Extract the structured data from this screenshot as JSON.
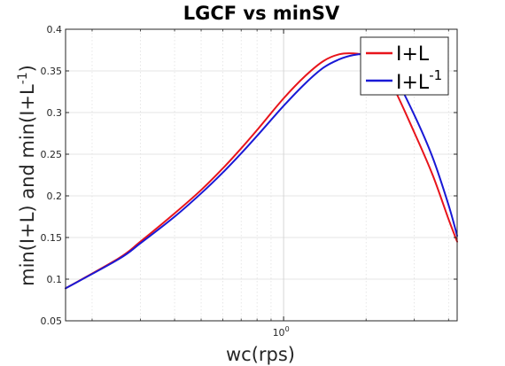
{
  "chart_data": {
    "type": "line",
    "title": "LGCF vs minSV",
    "xlabel": "wc(rps)",
    "ylabel_main": "min(I+L) and min(I+L",
    "ylabel_sup": "-1",
    "ylabel_end": ")",
    "xscale": "log",
    "xlim": [
      0.16,
      4.3
    ],
    "ylim": [
      0.05,
      0.4
    ],
    "grid": true,
    "legend_position": "top-right",
    "yticks": [
      0.05,
      0.1,
      0.15,
      0.2,
      0.25,
      0.3,
      0.35,
      0.4
    ],
    "ytick_labels": [
      "0.05",
      "0.1",
      "0.15",
      "0.2",
      "0.25",
      "0.3",
      "0.35",
      "0.4"
    ],
    "xtick_major": [
      {
        "value": 1,
        "base": "10",
        "exponent": "0"
      }
    ],
    "xtick_minor": [
      0.2,
      0.3,
      0.4,
      0.5,
      0.6,
      0.7,
      0.8,
      0.9,
      2,
      3,
      4
    ],
    "series": [
      {
        "name": "I+L",
        "name_sup": "",
        "color": "#e8141b",
        "x": [
          0.16,
          0.25,
          0.3,
          0.4,
          0.5,
          0.6,
          0.7,
          0.8,
          1.0,
          1.2,
          1.4,
          1.6,
          1.8,
          2.0,
          2.2,
          2.5,
          3.0,
          3.5,
          4.0,
          4.3
        ],
        "y": [
          0.089,
          0.125,
          0.145,
          0.179,
          0.207,
          0.233,
          0.257,
          0.279,
          0.317,
          0.344,
          0.362,
          0.37,
          0.371,
          0.368,
          0.357,
          0.332,
          0.276,
          0.225,
          0.172,
          0.145
        ]
      },
      {
        "name": "I+L",
        "name_sup": "-1",
        "color": "#1919d6",
        "x": [
          0.16,
          0.25,
          0.3,
          0.4,
          0.5,
          0.6,
          0.7,
          0.8,
          1.0,
          1.2,
          1.4,
          1.6,
          1.8,
          2.0,
          2.2,
          2.5,
          3.0,
          3.5,
          4.0,
          4.3
        ],
        "y": [
          0.089,
          0.124,
          0.143,
          0.175,
          0.203,
          0.228,
          0.251,
          0.272,
          0.308,
          0.335,
          0.354,
          0.364,
          0.369,
          0.37,
          0.366,
          0.348,
          0.297,
          0.246,
          0.189,
          0.152
        ]
      }
    ]
  }
}
